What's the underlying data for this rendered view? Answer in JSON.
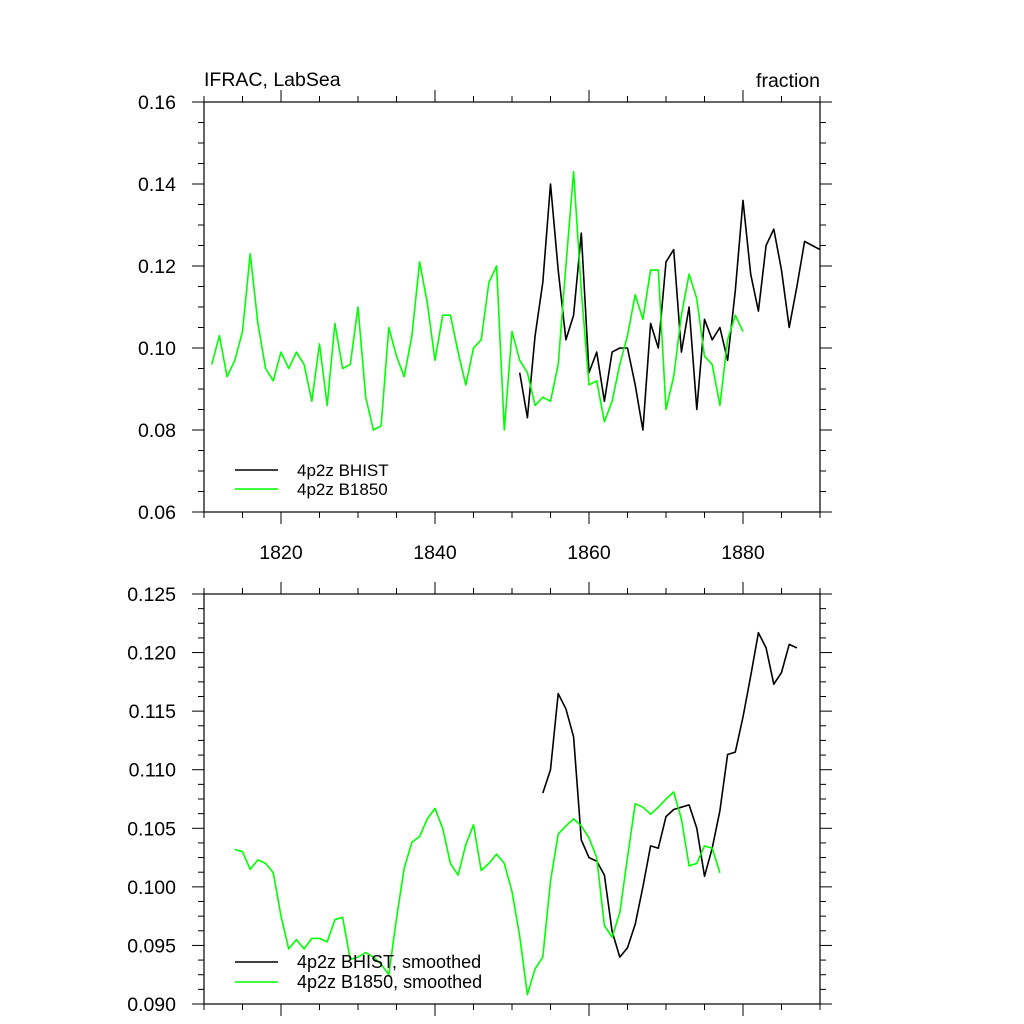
{
  "chart_data": [
    {
      "type": "line",
      "title_left": "IFRAC, LabSea",
      "title_right": "fraction",
      "xlim": [
        1810,
        1890
      ],
      "ylim": [
        0.06,
        0.16
      ],
      "xticks": [
        1820,
        1840,
        1860,
        1880
      ],
      "yticks": [
        0.06,
        0.08,
        0.1,
        0.12,
        0.14,
        0.16
      ],
      "ytick_labels": [
        "0.06",
        "0.08",
        "0.10",
        "0.12",
        "0.14",
        "0.16"
      ],
      "legend": [
        "4p2z BHIST",
        "4p2z B1850"
      ],
      "series": [
        {
          "name": "4p2z BHIST",
          "color": "#000000",
          "x": [
            1851,
            1852,
            1853,
            1854,
            1855,
            1856,
            1857,
            1858,
            1859,
            1860,
            1861,
            1862,
            1863,
            1864,
            1865,
            1866,
            1867,
            1868,
            1869,
            1870,
            1871,
            1872,
            1873,
            1874,
            1875,
            1876,
            1877,
            1878,
            1879,
            1880,
            1881,
            1882,
            1883,
            1884,
            1885,
            1886,
            1887,
            1888,
            1889,
            1890
          ],
          "values": [
            0.094,
            0.083,
            0.103,
            0.116,
            0.14,
            0.119,
            0.102,
            0.108,
            0.128,
            0.094,
            0.099,
            0.087,
            0.099,
            0.1,
            0.1,
            0.091,
            0.08,
            0.106,
            0.1,
            0.121,
            0.124,
            0.099,
            0.11,
            0.085,
            0.107,
            0.102,
            0.105,
            0.097,
            0.114,
            0.136,
            0.118,
            0.109,
            0.125,
            0.129,
            0.119,
            0.105,
            0.115,
            0.126,
            0.125,
            0.124
          ]
        },
        {
          "name": "4p2z B1850",
          "color": "#00ff00",
          "x": [
            1811,
            1812,
            1813,
            1814,
            1815,
            1816,
            1817,
            1818,
            1819,
            1820,
            1821,
            1822,
            1823,
            1824,
            1825,
            1826,
            1827,
            1828,
            1829,
            1830,
            1831,
            1832,
            1833,
            1834,
            1835,
            1836,
            1837,
            1838,
            1839,
            1840,
            1841,
            1842,
            1843,
            1844,
            1845,
            1846,
            1847,
            1848,
            1849,
            1850,
            1851,
            1852,
            1853,
            1854,
            1855,
            1856,
            1857,
            1858,
            1859,
            1860,
            1861,
            1862,
            1863,
            1864,
            1865,
            1866,
            1867,
            1868,
            1869,
            1870,
            1871,
            1872,
            1873,
            1874,
            1875,
            1876,
            1877,
            1878,
            1879,
            1880
          ],
          "values": [
            0.096,
            0.103,
            0.093,
            0.097,
            0.104,
            0.123,
            0.106,
            0.095,
            0.092,
            0.099,
            0.095,
            0.099,
            0.096,
            0.087,
            0.101,
            0.086,
            0.106,
            0.095,
            0.096,
            0.11,
            0.088,
            0.08,
            0.081,
            0.105,
            0.098,
            0.093,
            0.103,
            0.121,
            0.111,
            0.097,
            0.108,
            0.108,
            0.099,
            0.091,
            0.1,
            0.102,
            0.116,
            0.12,
            0.08,
            0.104,
            0.097,
            0.094,
            0.086,
            0.088,
            0.087,
            0.096,
            0.12,
            0.143,
            0.114,
            0.091,
            0.092,
            0.082,
            0.087,
            0.096,
            0.103,
            0.113,
            0.107,
            0.119,
            0.119,
            0.085,
            0.093,
            0.108,
            0.118,
            0.112,
            0.098,
            0.096,
            0.086,
            0.102,
            0.108,
            0.104
          ]
        }
      ]
    },
    {
      "type": "line",
      "xlim": [
        1810,
        1890
      ],
      "ylim": [
        0.09,
        0.125
      ],
      "xticks": [
        1820,
        1840,
        1860,
        1880
      ],
      "yticks": [
        0.09,
        0.095,
        0.1,
        0.105,
        0.11,
        0.115,
        0.12,
        0.125
      ],
      "ytick_labels": [
        "0.090",
        "0.095",
        "0.100",
        "0.105",
        "0.110",
        "0.115",
        "0.120",
        "0.125"
      ],
      "legend": [
        "4p2z BHIST, smoothed",
        "4p2z B1850, smoothed"
      ],
      "series": [
        {
          "name": "4p2z BHIST, smoothed",
          "color": "#000000",
          "x": [
            1854,
            1855,
            1856,
            1857,
            1858,
            1859,
            1860,
            1861,
            1862,
            1863,
            1864,
            1865,
            1866,
            1867,
            1868,
            1869,
            1870,
            1871,
            1872,
            1873,
            1874,
            1875,
            1876,
            1877,
            1878,
            1879,
            1880,
            1881,
            1882,
            1883,
            1884,
            1885,
            1886,
            1887
          ],
          "values": [
            0.108,
            0.11,
            0.1165,
            0.1152,
            0.1128,
            0.104,
            0.1025,
            0.1022,
            0.101,
            0.0962,
            0.094,
            0.0948,
            0.0968,
            0.1,
            0.1035,
            0.1033,
            0.106,
            0.1066,
            0.1068,
            0.107,
            0.105,
            0.1009,
            0.1033,
            0.1065,
            0.1113,
            0.1115,
            0.1145,
            0.118,
            0.1217,
            0.1204,
            0.1173,
            0.1183,
            0.1207,
            0.1204
          ]
        },
        {
          "name": "4p2z B1850, smoothed",
          "color": "#00ff00",
          "x": [
            1814,
            1815,
            1816,
            1817,
            1818,
            1819,
            1820,
            1821,
            1822,
            1823,
            1824,
            1825,
            1826,
            1827,
            1828,
            1829,
            1830,
            1831,
            1832,
            1833,
            1834,
            1835,
            1836,
            1837,
            1838,
            1839,
            1840,
            1841,
            1842,
            1843,
            1844,
            1845,
            1846,
            1847,
            1848,
            1849,
            1850,
            1851,
            1852,
            1853,
            1854,
            1855,
            1856,
            1857,
            1858,
            1859,
            1860,
            1861,
            1862,
            1863,
            1864,
            1865,
            1866,
            1867,
            1868,
            1869,
            1870,
            1871,
            1872,
            1873,
            1874,
            1875,
            1876,
            1877
          ],
          "values": [
            0.1032,
            0.103,
            0.1015,
            0.1023,
            0.102,
            0.1012,
            0.0975,
            0.0947,
            0.0955,
            0.0947,
            0.0956,
            0.0956,
            0.0953,
            0.0972,
            0.0974,
            0.0938,
            0.094,
            0.0944,
            0.094,
            0.0934,
            0.0925,
            0.0973,
            0.1016,
            0.1038,
            0.1043,
            0.1058,
            0.1067,
            0.105,
            0.102,
            0.101,
            0.1036,
            0.1053,
            0.1014,
            0.102,
            0.1028,
            0.102,
            0.0996,
            0.0958,
            0.0908,
            0.093,
            0.094,
            0.1005,
            0.1045,
            0.1052,
            0.1058,
            0.1052,
            0.1042,
            0.1025,
            0.0967,
            0.0957,
            0.0978,
            0.1025,
            0.1071,
            0.1068,
            0.1062,
            0.1068,
            0.1075,
            0.1081,
            0.1058,
            0.1018,
            0.102,
            0.1035,
            0.1033,
            0.1012
          ]
        }
      ]
    }
  ]
}
